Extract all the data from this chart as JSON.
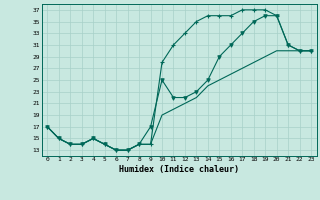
{
  "xlabel": "Humidex (Indice chaleur)",
  "bg_color": "#c8e8e0",
  "grid_color": "#a8d0c8",
  "line_color": "#006858",
  "xlim": [
    -0.5,
    23.5
  ],
  "ylim": [
    12,
    38
  ],
  "yticks": [
    13,
    15,
    17,
    19,
    21,
    23,
    25,
    27,
    29,
    31,
    33,
    35,
    37
  ],
  "xticks": [
    0,
    1,
    2,
    3,
    4,
    5,
    6,
    7,
    8,
    9,
    10,
    11,
    12,
    13,
    14,
    15,
    16,
    17,
    18,
    19,
    20,
    21,
    22,
    23
  ],
  "line1_x": [
    0,
    1,
    2,
    3,
    4,
    5,
    6,
    7,
    8,
    9,
    10,
    11,
    12,
    13,
    14,
    15,
    16,
    17,
    18,
    19,
    20,
    21,
    22,
    23
  ],
  "line1_y": [
    17,
    15,
    14,
    14,
    15,
    14,
    13,
    13,
    14,
    14,
    28,
    31,
    33,
    35,
    36,
    36,
    36,
    37,
    37,
    37,
    36,
    31,
    30,
    30
  ],
  "line2_x": [
    0,
    1,
    2,
    3,
    4,
    5,
    6,
    7,
    8,
    9,
    10,
    11,
    12,
    13,
    14,
    15,
    16,
    17,
    18,
    19,
    20,
    21,
    22,
    23
  ],
  "line2_y": [
    17,
    15,
    14,
    14,
    15,
    14,
    13,
    13,
    14,
    17,
    25,
    22,
    22,
    23,
    25,
    29,
    31,
    33,
    35,
    36,
    36,
    31,
    30,
    30
  ],
  "line3_x": [
    0,
    1,
    2,
    3,
    4,
    5,
    6,
    7,
    8,
    9,
    10,
    11,
    12,
    13,
    14,
    15,
    16,
    17,
    18,
    19,
    20,
    21,
    22,
    23
  ],
  "line3_y": [
    17,
    15,
    14,
    14,
    15,
    14,
    13,
    13,
    14,
    14,
    19,
    20,
    21,
    22,
    24,
    25,
    26,
    27,
    28,
    29,
    30,
    30,
    30,
    30
  ]
}
